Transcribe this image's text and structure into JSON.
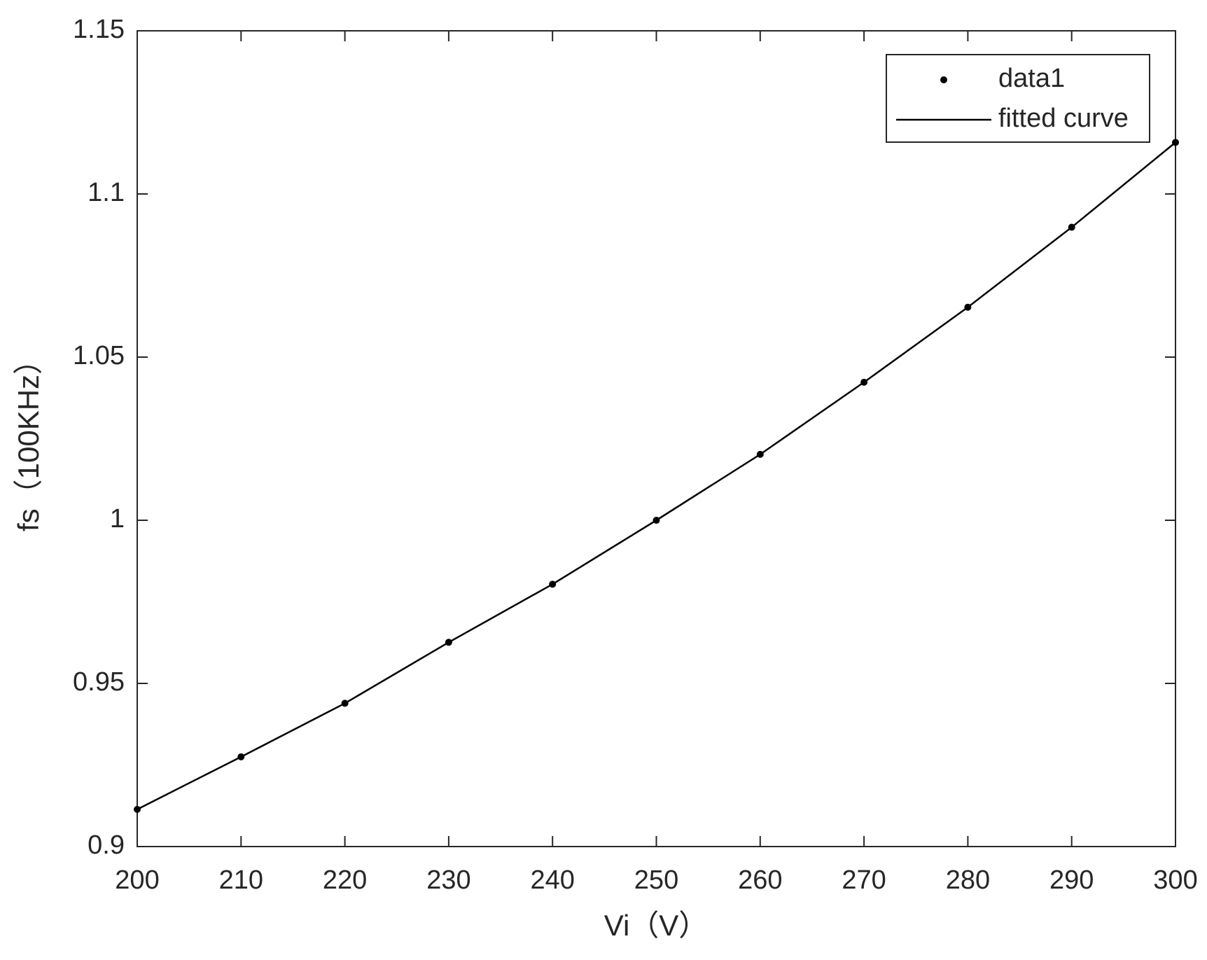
{
  "chart_data": {
    "type": "line",
    "x_label": "Vi（V）",
    "y_label": "fs（100KHz）",
    "xlim": [
      200,
      300
    ],
    "xticks": [
      200,
      210,
      220,
      230,
      240,
      250,
      260,
      270,
      280,
      290,
      300
    ],
    "ylim": [
      0.9,
      1.15
    ],
    "yticks": [
      0.9,
      0.95,
      1,
      1.05,
      1.1,
      1.15
    ],
    "legend": "top-right",
    "grid": false,
    "series": [
      {
        "name": "data1",
        "color": "#000000",
        "style": "markers",
        "x": [
          200,
          210,
          220,
          230,
          240,
          250,
          260,
          270,
          280,
          290,
          300
        ],
        "values": [
          0.9114,
          0.9275,
          0.9439,
          0.9626,
          0.9804,
          1.0,
          1.0202,
          1.0423,
          1.0653,
          1.0898,
          1.1158
        ]
      },
      {
        "name": "fitted curve",
        "color": "#000000",
        "style": "line",
        "x": [
          200,
          210,
          220,
          230,
          240,
          250,
          260,
          270,
          280,
          290,
          300
        ],
        "values": [
          0.9114,
          0.9275,
          0.9439,
          0.9626,
          0.9804,
          1.0,
          1.0202,
          1.0423,
          1.0653,
          1.0898,
          1.1158
        ]
      }
    ]
  }
}
